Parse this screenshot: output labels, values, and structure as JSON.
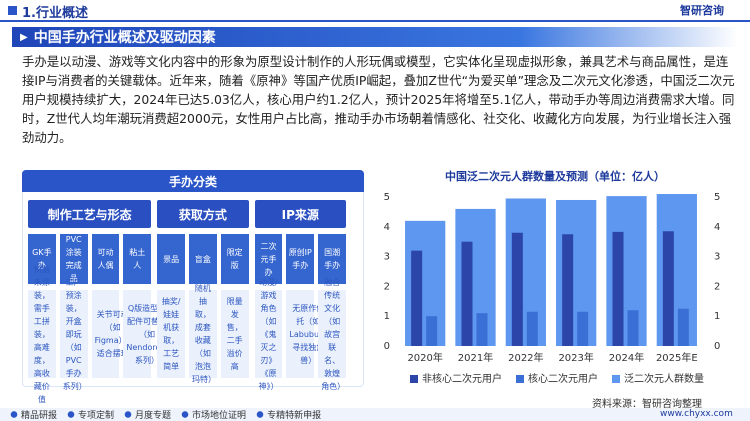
{
  "header": {
    "section": "1.行业概述",
    "logo": "智研咨询"
  },
  "banner": "中国手办行业概述及驱动因素",
  "paragraph": "手办是以动漫、游戏等文化内容中的形象为原型设计制作的人形玩偶或模型，它实体化呈现虚拟形象，兼具艺术与商品属性，是连接IP与消费者的关键载体。近年来，随着《原神》等国产优质IP崛起，叠加Z世代“为爱买单”理念及二次元文化渗透，中国泛二次元用户规模持续扩大，2024年已达5.03亿人，核心用户约1.2亿人，预计2025年将增至5.1亿人，带动手办等周边消费需求大增。同时，Z世代人均年潮玩消费超2000元，女性用户占比高，推动手办市场朝着情感化、社交化、收藏化方向发展，为行业增长注入强劲动力。",
  "panel": {
    "title": "手办分类",
    "columns": [
      {
        "title": "制作工艺与形态",
        "items": [
          {
            "name": "GK手办",
            "desc": "树脂未涂装，需手工拼装，高难度，高收藏价值"
          },
          {
            "name": "PVC涂装完成品",
            "desc": "工厂预涂装，开盒即玩（如PVC手办系列）"
          },
          {
            "name": "可动人偶",
            "desc": "关节可动（如Figma），适合摆玩"
          },
          {
            "name": "粘土人",
            "desc": "Q版造型，配件可替换（如Nendoroid系列）"
          }
        ]
      },
      {
        "title": "获取方式",
        "items": [
          {
            "name": "景品",
            "desc": "抽奖/娃娃机获取，工艺简单"
          },
          {
            "name": "盲盒",
            "desc": "随机抽取，成套收藏（如泡泡玛特）"
          },
          {
            "name": "限定版",
            "desc": "限量发售，二手溢价高"
          }
        ]
      },
      {
        "title": "IP来源",
        "items": [
          {
            "name": "二次元手办",
            "desc": "动漫/游戏角色（如《鬼灭之刃》《原神》）"
          },
          {
            "name": "原创IP手办",
            "desc": "无原作依托（如Labubu、寻找独角兽）"
          },
          {
            "name": "国潮手办",
            "desc": "融合传统文化（如故宫联名、敦煌角色）"
          }
        ]
      }
    ]
  },
  "chart_data": {
    "type": "bar",
    "title": "中国泛二次元人群数量及预测（单位：亿人）",
    "categories": [
      "2020年",
      "2021年",
      "2022年",
      "2023年",
      "2024年",
      "2025年E"
    ],
    "ylim": [
      0,
      5
    ],
    "yticks": [
      0,
      1,
      2,
      3,
      4,
      5
    ],
    "y2lim": [
      0,
      5
    ],
    "y2ticks": [
      0,
      1,
      2,
      3,
      4,
      5
    ],
    "series": [
      {
        "name": "非核心二次元用户",
        "color": "#2b45a8",
        "values": [
          3.2,
          3.5,
          3.8,
          3.75,
          3.83,
          3.85
        ]
      },
      {
        "name": "核心二次元用户",
        "color": "#3a6fd6",
        "values": [
          1.0,
          1.1,
          1.15,
          1.15,
          1.2,
          1.25
        ]
      },
      {
        "name": "泛二次元人群数量",
        "color": "#5e97ef",
        "axis": "y2",
        "values": [
          4.2,
          4.6,
          4.95,
          4.9,
          5.03,
          5.1
        ]
      }
    ],
    "source": "资料来源：智研咨询整理"
  },
  "footer": {
    "items": [
      "精品研报",
      "专项定制",
      "月度专题",
      "市场地位证明",
      "专精特新申报"
    ],
    "url": "www.chyxx.com"
  }
}
